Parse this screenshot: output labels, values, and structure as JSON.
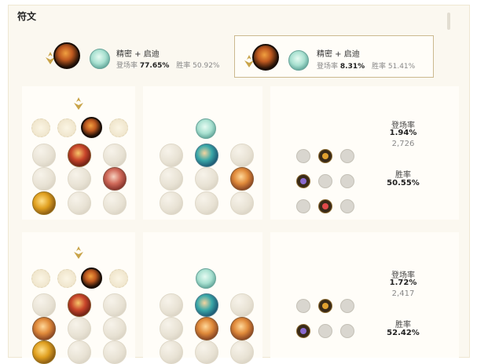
{
  "page": {
    "title": "符文"
  },
  "summary": [
    {
      "name": "精密 + 启迪",
      "pick_label": "登场率",
      "pick_rate": "77.65%",
      "win_label": "胜率",
      "win_rate": "50.92%"
    },
    {
      "name": "精密 + 启迪",
      "pick_label": "登场率",
      "pick_rate": "8.31%",
      "win_label": "胜率",
      "win_rate": "51.41%"
    }
  ],
  "pages": [
    {
      "pick_label": "登场率",
      "pick_rate": "1.94%",
      "games": "2,726",
      "win_label": "胜率",
      "win_rate": "50.55%"
    },
    {
      "pick_label": "登场率",
      "pick_rate": "1.72%",
      "games": "2,417",
      "win_label": "胜率",
      "win_rate": "52.42%"
    }
  ],
  "icons": {
    "primary_path": "precision-emblem-icon",
    "secondary_path": "inspiration-emblem-icon",
    "keystone": "fleet-footwork-icon"
  },
  "colors": {
    "accent_border": "#cbb98f",
    "panel_bg": "#fbf8f0"
  }
}
